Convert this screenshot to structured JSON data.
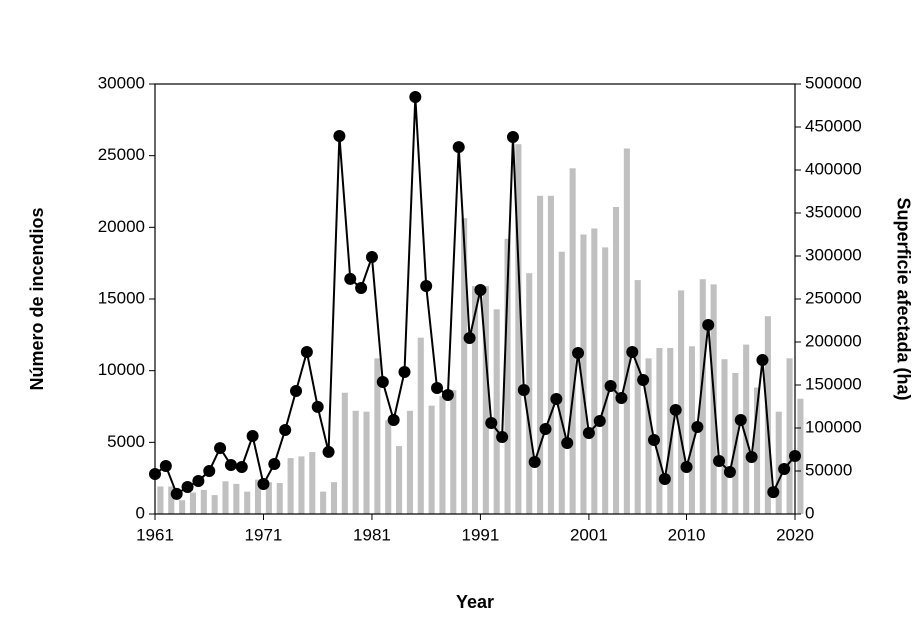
{
  "chart_data": {
    "type": "bar-line",
    "x_label": "Year",
    "y_label": "Número de incendios",
    "y2_label": "Superficie afectada  (ha)",
    "x": [
      1961,
      1962,
      1963,
      1964,
      1965,
      1966,
      1967,
      1968,
      1969,
      1970,
      1971,
      1972,
      1973,
      1974,
      1975,
      1976,
      1977,
      1978,
      1979,
      1980,
      1981,
      1982,
      1983,
      1984,
      1985,
      1986,
      1987,
      1988,
      1989,
      1990,
      1991,
      1992,
      1993,
      1994,
      1995,
      1996,
      1997,
      1998,
      1999,
      2000,
      2001,
      2002,
      2003,
      2004,
      2005,
      2006,
      2007,
      2008,
      2009,
      2010,
      2011,
      2012,
      2013,
      2014,
      2015,
      2016,
      2017,
      2018,
      2019,
      2020
    ],
    "xlim": [
      1961,
      2020
    ],
    "xticks": [
      1961,
      1971,
      1981,
      1991,
      2001,
      2010,
      2020
    ],
    "ylim": [
      0,
      30000
    ],
    "yticks": [
      0,
      5000,
      10000,
      15000,
      20000,
      25000,
      30000
    ],
    "y2lim": [
      0,
      500000
    ],
    "y2ticks": [
      0,
      50000,
      100000,
      150000,
      200000,
      250000,
      300000,
      350000,
      400000,
      450000,
      500000
    ],
    "series": [
      {
        "type": "bar",
        "axis": "y2",
        "color": "#c0c0c0",
        "values": [
          32000,
          32000,
          16000,
          25000,
          28000,
          22000,
          38000,
          35000,
          26000,
          40000,
          37000,
          36000,
          65000,
          67000,
          72000,
          26000,
          37000,
          141000,
          120000,
          119000,
          181000,
          109000,
          79000,
          120000,
          205000,
          126000,
          137000,
          144000,
          344000,
          265000,
          265000,
          238000,
          320000,
          430000,
          280000,
          370000,
          370000,
          305000,
          402000,
          325000,
          332000,
          310000,
          357000,
          425000,
          272000,
          181000,
          193000,
          193000,
          260000,
          195000,
          273000,
          267000,
          180000,
          164000,
          197000,
          147000,
          230000,
          119000,
          181000,
          134000
        ]
      },
      {
        "type": "line",
        "axis": "y",
        "color": "#000000",
        "values": [
          2790,
          3350,
          1400,
          1880,
          2300,
          3000,
          4600,
          3420,
          3280,
          5440,
          2090,
          3490,
          5860,
          8580,
          11300,
          7470,
          4330,
          26370,
          16400,
          15770,
          17930,
          9210,
          6560,
          9910,
          29090,
          15910,
          8790,
          8300,
          25600,
          12280,
          15630,
          6350,
          5370,
          26300,
          8650,
          3630,
          5930,
          8020,
          4950,
          11230,
          5650,
          6490,
          8930,
          8090,
          11300,
          9350,
          5160,
          2440,
          7260,
          3280,
          6070,
          13190,
          3700,
          2930,
          6560,
          3980,
          10740,
          1530,
          3140,
          4050
        ]
      }
    ]
  }
}
